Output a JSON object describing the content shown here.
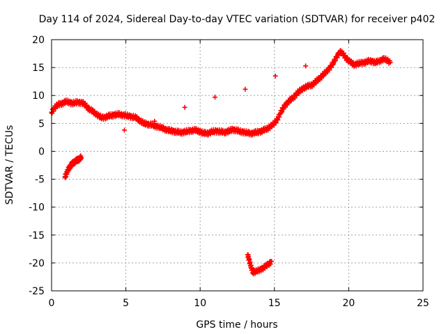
{
  "chart_data": {
    "type": "scatter",
    "title": "Day 114 of 2024, Sidereal Day-to-day VTEC variation (SDTVAR) for receiver p402",
    "xlabel": "GPS time / hours",
    "ylabel": "SDTVAR / TECUs",
    "xlim": [
      0,
      25
    ],
    "ylim": [
      -25,
      20
    ],
    "xticks": [
      0,
      5,
      10,
      15,
      20,
      25
    ],
    "yticks": [
      -25,
      -20,
      -15,
      -10,
      -5,
      0,
      5,
      10,
      15,
      20
    ],
    "grid": true,
    "marker": "plus",
    "color": "#ff0000",
    "series": [
      {
        "name": "main track",
        "x": [
          0.0,
          0.2,
          0.4,
          0.6,
          0.8,
          1.0,
          1.2,
          1.4,
          1.6,
          1.8,
          2.0,
          2.2,
          2.4,
          2.6,
          2.8,
          3.0,
          3.2,
          3.4,
          3.6,
          3.8,
          4.0,
          4.2,
          4.4,
          4.6,
          4.8,
          5.0,
          5.2,
          5.4,
          5.6,
          5.8,
          6.0,
          6.2,
          6.4,
          6.6,
          6.8,
          7.0,
          7.2,
          7.4,
          7.6,
          7.8,
          8.0,
          8.2,
          8.4,
          8.6,
          8.8,
          9.0,
          9.2,
          9.4,
          9.6,
          9.8,
          10.0,
          10.2,
          10.4,
          10.6,
          10.8,
          11.0,
          11.2,
          11.4,
          11.6,
          11.8,
          12.0,
          12.2,
          12.4,
          12.6,
          12.8,
          13.0,
          13.2,
          13.4,
          13.6,
          13.8,
          14.0,
          14.2,
          14.4,
          14.6,
          14.8,
          15.0,
          15.2,
          15.4,
          15.6,
          15.8,
          16.0,
          16.2,
          16.4,
          16.6,
          16.8,
          17.0,
          17.2,
          17.4,
          17.6,
          17.8,
          18.0,
          18.2,
          18.4,
          18.6,
          18.8,
          19.0,
          19.2,
          19.4,
          19.6,
          19.8,
          20.0,
          20.2,
          20.4,
          20.6,
          20.8,
          21.0,
          21.2,
          21.4,
          21.6,
          21.8,
          22.0,
          22.2,
          22.4,
          22.6,
          22.8
        ],
        "y": [
          7.0,
          7.8,
          8.3,
          8.5,
          8.7,
          8.9,
          8.8,
          8.6,
          8.7,
          8.8,
          8.7,
          8.5,
          7.9,
          7.4,
          7.1,
          6.7,
          6.3,
          6.0,
          6.1,
          6.3,
          6.4,
          6.5,
          6.6,
          6.6,
          6.5,
          6.4,
          6.3,
          6.2,
          6.1,
          5.8,
          5.4,
          5.0,
          4.9,
          4.8,
          4.7,
          4.5,
          4.4,
          4.2,
          4.0,
          3.8,
          3.7,
          3.6,
          3.5,
          3.4,
          3.4,
          3.5,
          3.6,
          3.7,
          3.8,
          3.7,
          3.5,
          3.3,
          3.2,
          3.3,
          3.5,
          3.6,
          3.6,
          3.5,
          3.4,
          3.5,
          3.7,
          3.9,
          3.8,
          3.6,
          3.5,
          3.4,
          3.3,
          3.2,
          3.3,
          3.4,
          3.5,
          3.7,
          3.9,
          4.2,
          4.6,
          5.0,
          5.8,
          6.8,
          7.8,
          8.5,
          9.0,
          9.5,
          10.0,
          10.6,
          11.0,
          11.4,
          11.6,
          11.8,
          12.0,
          12.5,
          13.0,
          13.5,
          14.0,
          14.6,
          15.2,
          16.0,
          17.0,
          17.8,
          17.5,
          16.8,
          16.2,
          15.8,
          15.5,
          15.7,
          15.8,
          15.9,
          16.0,
          16.2,
          16.1,
          15.9,
          16.1,
          16.4,
          16.5,
          16.3,
          15.9
        ]
      },
      {
        "name": "early negative segment",
        "x": [
          0.9,
          1.0,
          1.1,
          1.2,
          1.3,
          1.4,
          1.5,
          1.6,
          1.7,
          1.8,
          1.9,
          2.0
        ],
        "y": [
          -4.5,
          -4.0,
          -3.4,
          -2.9,
          -2.5,
          -2.2,
          -2.0,
          -1.8,
          -1.6,
          -1.5,
          -1.3,
          -1.1
        ]
      },
      {
        "name": "deep negative segment",
        "x": [
          13.2,
          13.3,
          13.4,
          13.5,
          13.6,
          13.8,
          14.0,
          14.2,
          14.4,
          14.6,
          14.8
        ],
        "y": [
          -18.5,
          -19.5,
          -20.5,
          -21.3,
          -21.7,
          -21.5,
          -21.2,
          -21.0,
          -20.6,
          -20.2,
          -19.7
        ]
      },
      {
        "name": "isolated points",
        "x": [
          4.9,
          17.1
        ],
        "y": [
          3.8,
          15.3
        ]
      }
    ]
  }
}
